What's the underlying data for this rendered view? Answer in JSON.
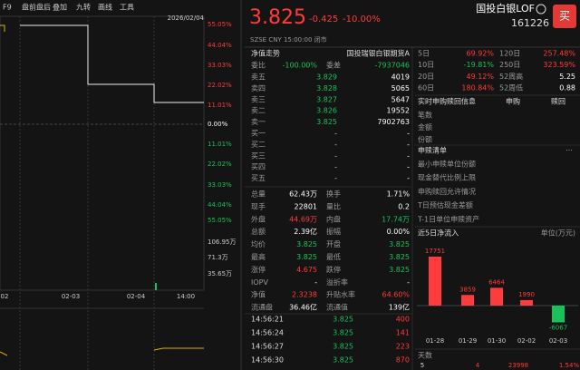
{
  "left_panel": {
    "toolbar": [
      "F9",
      "盘前盘后",
      "叠加",
      "九转",
      "画线",
      "工具"
    ],
    "date": "2026/02/04",
    "pct_axis": [
      "55.05%",
      "44.04%",
      "33.03%",
      "22.02%",
      "11.01%",
      "0.00%",
      "11.01%",
      "22.02%",
      "33.03%",
      "44.04%",
      "55.05%"
    ],
    "volume_axis": [
      "106.95万",
      "71.3万",
      "35.65万"
    ],
    "time_axis": [
      "02",
      "02-03",
      "02-04",
      "14:00"
    ]
  },
  "quote": {
    "price": "3.825",
    "change": "-0.425",
    "change_pct": "-10.00%",
    "name": "国投白银LOF",
    "code": "161226",
    "buy_button": "买",
    "status": "SZSE CNY 15:00:00 闭市"
  },
  "order_book": {
    "header": [
      "净值走势",
      "国投瑞银白银期货A"
    ],
    "ratio": [
      "委比",
      "-100.00%",
      "委差",
      "-7937046"
    ],
    "rows": [
      [
        "卖五",
        "3.829",
        "4019"
      ],
      [
        "卖四",
        "3.828",
        "5065"
      ],
      [
        "卖三",
        "3.827",
        "5647"
      ],
      [
        "卖二",
        "3.826",
        "19552"
      ],
      [
        "卖一",
        "3.825",
        "7902763"
      ],
      [
        "买一",
        "-",
        "-"
      ],
      [
        "买二",
        "-",
        "-"
      ],
      [
        "买三",
        "-",
        "-"
      ],
      [
        "买四",
        "-",
        "-"
      ],
      [
        "买五",
        "-",
        "-"
      ]
    ]
  },
  "stats": {
    "rows": [
      [
        "总量",
        "62.43万",
        "换手",
        "1.71%"
      ],
      [
        "现手",
        "22801",
        "量比",
        "0.2"
      ],
      [
        "外盘",
        "44.69万",
        "内盘",
        "17.74万"
      ],
      [
        "总额",
        "2.39亿",
        "振幅",
        "0.00%"
      ],
      [
        "均价",
        "3.825",
        "开盘",
        "3.825"
      ],
      [
        "最高",
        "3.825",
        "最低",
        "3.825"
      ],
      [
        "涨停",
        "4.675",
        "跌停",
        "3.825"
      ],
      [
        "IOPV",
        "-",
        "溢折率",
        "-"
      ],
      [
        "净值",
        "2.3238",
        "升贴水率",
        "64.60%"
      ],
      [
        "流通盘",
        "36.46亿",
        "流通值",
        "139亿"
      ]
    ],
    "colors": [
      [
        "#ffffff",
        "#ffffff"
      ],
      [
        "#ffffff",
        "#ffffff"
      ],
      [
        "#ff3b3b",
        "#19c15b"
      ],
      [
        "#ffffff",
        "#ffffff"
      ],
      [
        "#19c15b",
        "#19c15b"
      ],
      [
        "#19c15b",
        "#19c15b"
      ],
      [
        "#ff3b3b",
        "#19c15b"
      ],
      [
        "#ffffff",
        "#ffffff"
      ],
      [
        "#ff3b3b",
        "#ff3b3b"
      ],
      [
        "#ffffff",
        "#ffffff"
      ]
    ]
  },
  "ticks": [
    [
      "14:56:21",
      "3.825",
      "400"
    ],
    [
      "14:56:24",
      "3.825",
      "141"
    ],
    [
      "14:56:27",
      "3.825",
      "223"
    ],
    [
      "14:56:30",
      "3.825",
      "870"
    ]
  ],
  "performance": {
    "rows": [
      [
        "5日",
        "69.92%",
        "120日",
        "257.48%"
      ],
      [
        "10日",
        "-19.81%",
        "250日",
        "323.59%"
      ],
      [
        "20日",
        "49.12%",
        "52周高",
        "5.25"
      ],
      [
        "60日",
        "180.84%",
        "52周低",
        "0.88"
      ]
    ],
    "colors": [
      [
        "#ff3b3b",
        "#ff3b3b"
      ],
      [
        "#19c15b",
        "#ff3b3b"
      ],
      [
        "#ff3b3b",
        "#ffffff"
      ],
      [
        "#ff3b3b",
        "#ffffff"
      ]
    ]
  },
  "subscription": {
    "title": "实时申购赎回信息",
    "columns": [
      "申购",
      "赎回"
    ],
    "rows": [
      "笔数",
      "金额",
      "份额"
    ]
  },
  "redemption_list": {
    "title": "申赎清单",
    "rows": [
      "最小申赎单位份额",
      "现金替代比例上限",
      "申购赎回允许情况",
      "T日预估现金差额",
      "T-1日单位申赎资产"
    ]
  },
  "net_inflow": {
    "title": "近5日净流入",
    "unit": "单位(万元)",
    "categories": [
      "01-28",
      "01-29",
      "01-30",
      "02-02",
      "02-03"
    ],
    "values": [
      17751,
      3859,
      6464,
      1990,
      -6067
    ],
    "up_color": "#ff3b3b",
    "down_color": "#19c15b"
  },
  "bottom": {
    "label": "天数",
    "values": [
      "5",
      "4",
      "23998",
      "1.54%"
    ]
  }
}
